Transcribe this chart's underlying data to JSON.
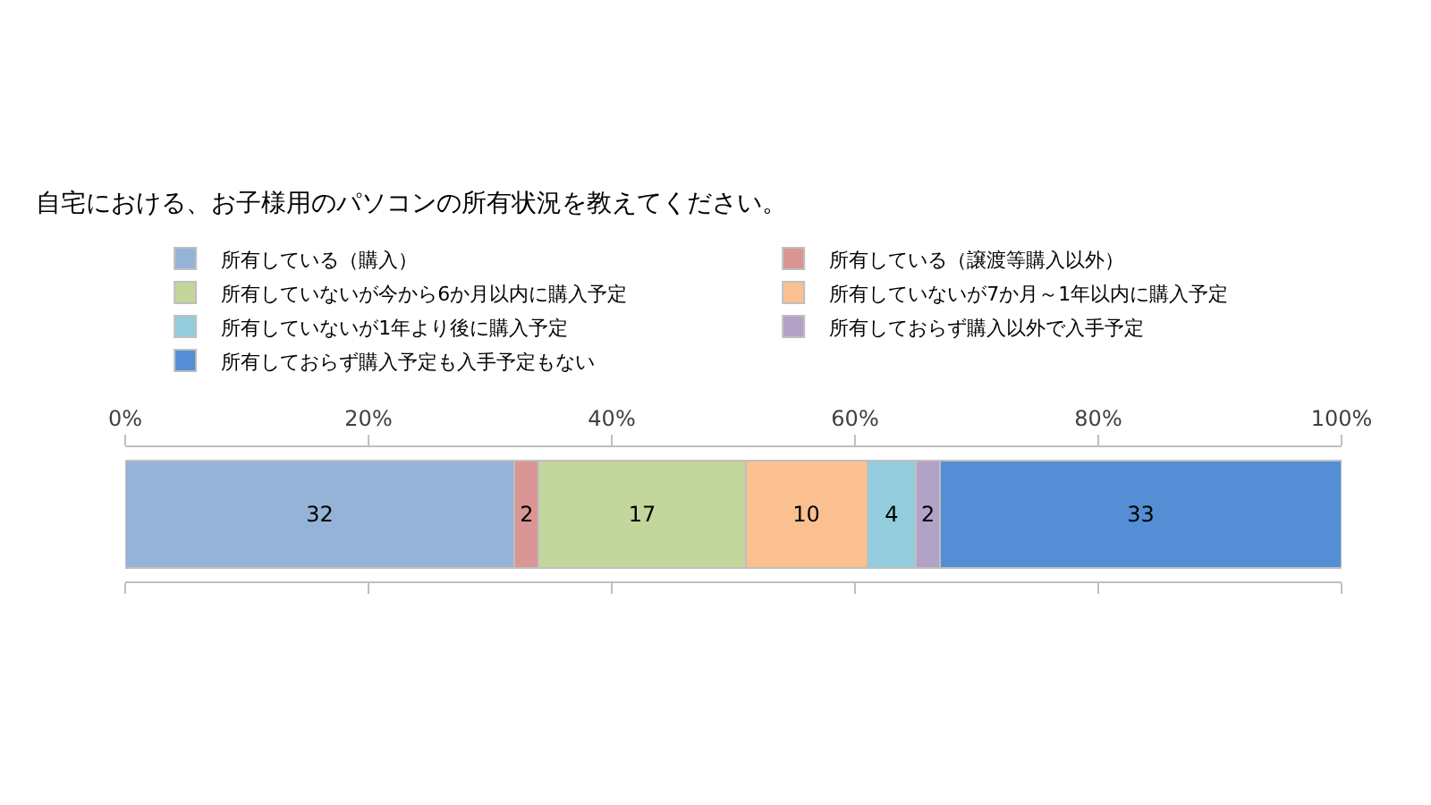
{
  "chart_data": {
    "type": "bar",
    "orientation": "horizontal",
    "stacked": true,
    "title": "自宅における、お子様用のパソコンの所有状況を教えてください。",
    "categories": [
      null
    ],
    "series": [
      {
        "name": "所有している（購入）",
        "color": "#95b3d7",
        "values": [
          32
        ]
      },
      {
        "name": "所有している（譲渡等購入以外）",
        "color": "#d99694",
        "values": [
          2
        ]
      },
      {
        "name": "所有していないが今から6か月以内に購入予定",
        "color": "#c3d69b",
        "values": [
          17
        ]
      },
      {
        "name": "所有していないが7か月～1年以内に購入予定",
        "color": "#fac090",
        "values": [
          10
        ]
      },
      {
        "name": "所有していないが1年より後に購入予定",
        "color": "#93cddd",
        "values": [
          4
        ]
      },
      {
        "name": "所有しておらず購入以外で入手予定",
        "color": "#b3a2c7",
        "values": [
          2
        ]
      },
      {
        "name": "所有しておらず購入予定も入手予定もない",
        "color": "#558ed5",
        "values": [
          33
        ]
      }
    ],
    "xlim": [
      0,
      100
    ],
    "xticks": [
      {
        "value": 0,
        "label": "0%"
      },
      {
        "value": 20,
        "label": "20%"
      },
      {
        "value": 40,
        "label": "40%"
      },
      {
        "value": 60,
        "label": "60%"
      },
      {
        "value": 80,
        "label": "80%"
      },
      {
        "value": 100,
        "label": "100%"
      }
    ],
    "data_labels": true,
    "legend": "top",
    "grid": false,
    "tick_labels": "x"
  }
}
